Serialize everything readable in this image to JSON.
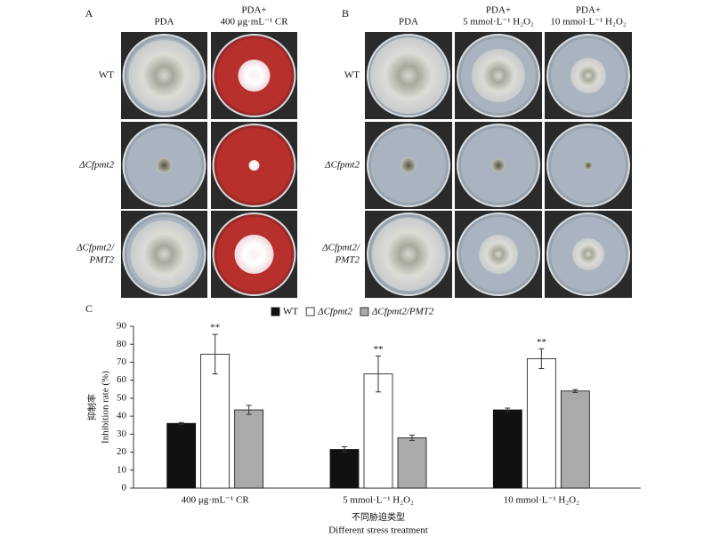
{
  "panel_a": {
    "label": "A",
    "columns": [
      [
        "PDA"
      ],
      [
        "PDA+",
        "400 μg·mL⁻¹ CR"
      ]
    ],
    "rows": [
      [
        "WT"
      ],
      [
        "ΔCfpmt2"
      ],
      [
        "ΔCfpmt2/",
        "PMT2"
      ]
    ]
  },
  "panel_b": {
    "label": "B",
    "columns": [
      [
        "PDA"
      ],
      [
        "PDA+",
        "5 mmol·L⁻¹ H₂O₂"
      ],
      [
        "PDA+",
        "10 mmol·L⁻¹ H₂O₂"
      ]
    ],
    "rows": [
      [
        "WT"
      ],
      [
        "ΔCfpmt2"
      ],
      [
        "ΔCfpmt2/",
        "PMT2"
      ]
    ]
  },
  "chart_data": {
    "type": "bar",
    "panel_label": "C",
    "y_label": [
      "抑制率",
      "Inhibition rate (%)"
    ],
    "x_label": [
      "不同胁迫类型",
      "Different stress treatment"
    ],
    "categories": [
      "400 μg·mL⁻¹ CR",
      "5 mmol·L⁻¹ H₂O₂",
      "10 mmol·L⁻¹ H₂O₂"
    ],
    "series": [
      {
        "name": "WT",
        "color": "#111111",
        "values": [
          36,
          21.5,
          43.5
        ],
        "errors": [
          0.5,
          1.5,
          1
        ]
      },
      {
        "name": "ΔCfpmt2",
        "color": "#ffffff",
        "values": [
          74.5,
          63.5,
          72
        ],
        "errors": [
          11,
          10,
          5.5
        ],
        "annotations": [
          "**",
          "**",
          "**"
        ]
      },
      {
        "name": "ΔCfpmt2/PMT2",
        "color": "#aaaaaa",
        "values": [
          43.5,
          28,
          54
        ],
        "errors": [
          2.5,
          1.5,
          0.8
        ]
      }
    ],
    "ylim": [
      0,
      90
    ],
    "yticks": [
      0,
      10,
      20,
      30,
      40,
      50,
      60,
      70,
      80,
      90
    ]
  }
}
